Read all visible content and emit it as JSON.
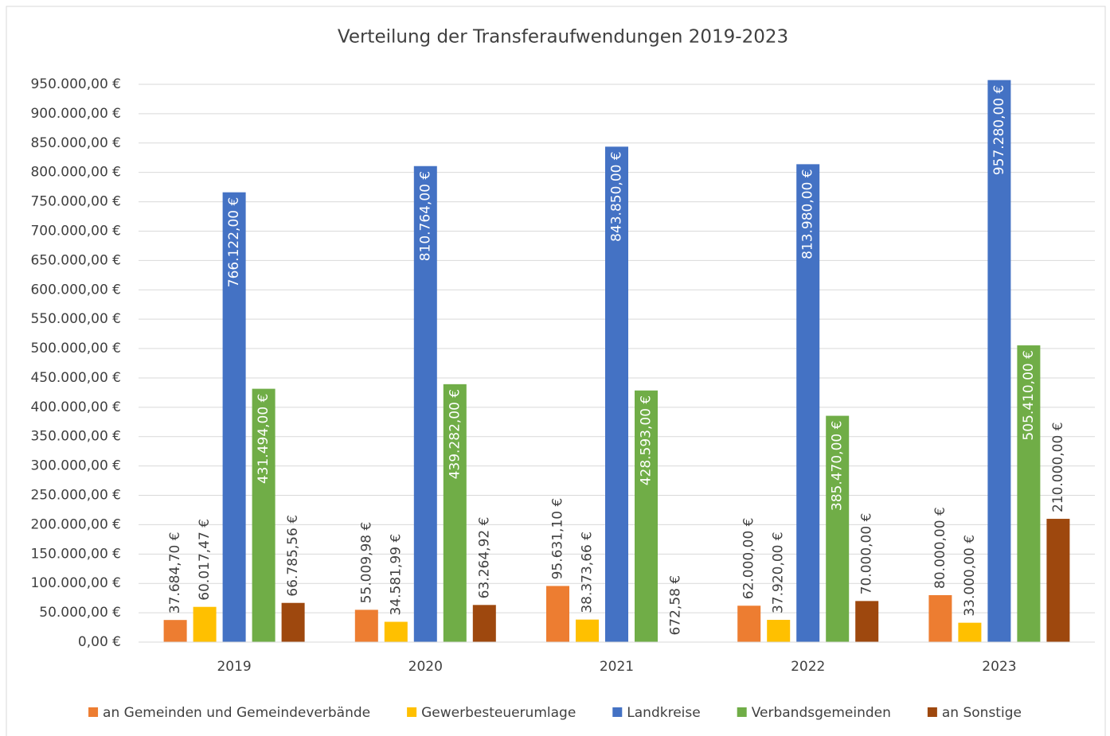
{
  "chart_data": {
    "type": "bar",
    "title": "Verteilung der Transferaufwendungen 2019-2023",
    "categories": [
      "2019",
      "2020",
      "2021",
      "2022",
      "2023"
    ],
    "series": [
      {
        "name": "an Gemeinden und Gemeindeverbände",
        "color": "#ed7d31",
        "values": [
          37684.7,
          55009.98,
          95631.1,
          62000.0,
          80000.0
        ],
        "value_labels": [
          "37.684,70 €",
          "55.009,98 €",
          "95.631,10 €",
          "62.000,00 €",
          "80.000,00 €"
        ]
      },
      {
        "name": "Gewerbesteuerumlage",
        "color": "#ffc000",
        "values": [
          60017.47,
          34581.99,
          38373.66,
          37920.0,
          33000.0
        ],
        "value_labels": [
          "60.017,47 €",
          "34.581,99 €",
          "38.373,66 €",
          "37.920,00 €",
          "33.000,00 €"
        ]
      },
      {
        "name": "Landkreise",
        "color": "#4472c4",
        "values": [
          766122.0,
          810764.0,
          843850.0,
          813980.0,
          957280.0
        ],
        "value_labels": [
          "766.122,00 €",
          "810.764,00 €",
          "843.850,00 €",
          "813.980,00 €",
          "957.280,00 €"
        ]
      },
      {
        "name": "Verbandsgemeinden",
        "color": "#70ad47",
        "values": [
          431494.0,
          439282.0,
          428593.0,
          385470.0,
          505410.0
        ],
        "value_labels": [
          "431.494,00 €",
          "439.282,00 €",
          "428.593,00 €",
          "385.470,00 €",
          "505.410,00 €"
        ]
      },
      {
        "name": "an Sonstige",
        "color": "#9e480e",
        "values": [
          66785.56,
          63264.92,
          672.58,
          70000.0,
          210000.0
        ],
        "value_labels": [
          "66.785,56 €",
          "63.264,92 €",
          "672,58 €",
          "70.000,00 €",
          "210.000,00 €"
        ]
      }
    ],
    "ylim": [
      0,
      950000
    ],
    "yticks": [
      {
        "value": 0,
        "label": "0,00 €"
      },
      {
        "value": 50000,
        "label": "50.000,00 €"
      },
      {
        "value": 100000,
        "label": "100.000,00 €"
      },
      {
        "value": 150000,
        "label": "150.000,00 €"
      },
      {
        "value": 200000,
        "label": "200.000,00 €"
      },
      {
        "value": 250000,
        "label": "250.000,00 €"
      },
      {
        "value": 300000,
        "label": "300.000,00 €"
      },
      {
        "value": 350000,
        "label": "350.000,00 €"
      },
      {
        "value": 400000,
        "label": "400.000,00 €"
      },
      {
        "value": 450000,
        "label": "450.000,00 €"
      },
      {
        "value": 500000,
        "label": "500.000,00 €"
      },
      {
        "value": 550000,
        "label": "550.000,00 €"
      },
      {
        "value": 600000,
        "label": "600.000,00 €"
      },
      {
        "value": 650000,
        "label": "650.000,00 €"
      },
      {
        "value": 700000,
        "label": "700.000,00 €"
      },
      {
        "value": 750000,
        "label": "750.000,00 €"
      },
      {
        "value": 800000,
        "label": "800.000,00 €"
      },
      {
        "value": 850000,
        "label": "850.000,00 €"
      },
      {
        "value": 900000,
        "label": "900.000,00 €"
      },
      {
        "value": 950000,
        "label": "950.000,00 €"
      }
    ],
    "grid": true,
    "legend": "bottom"
  }
}
